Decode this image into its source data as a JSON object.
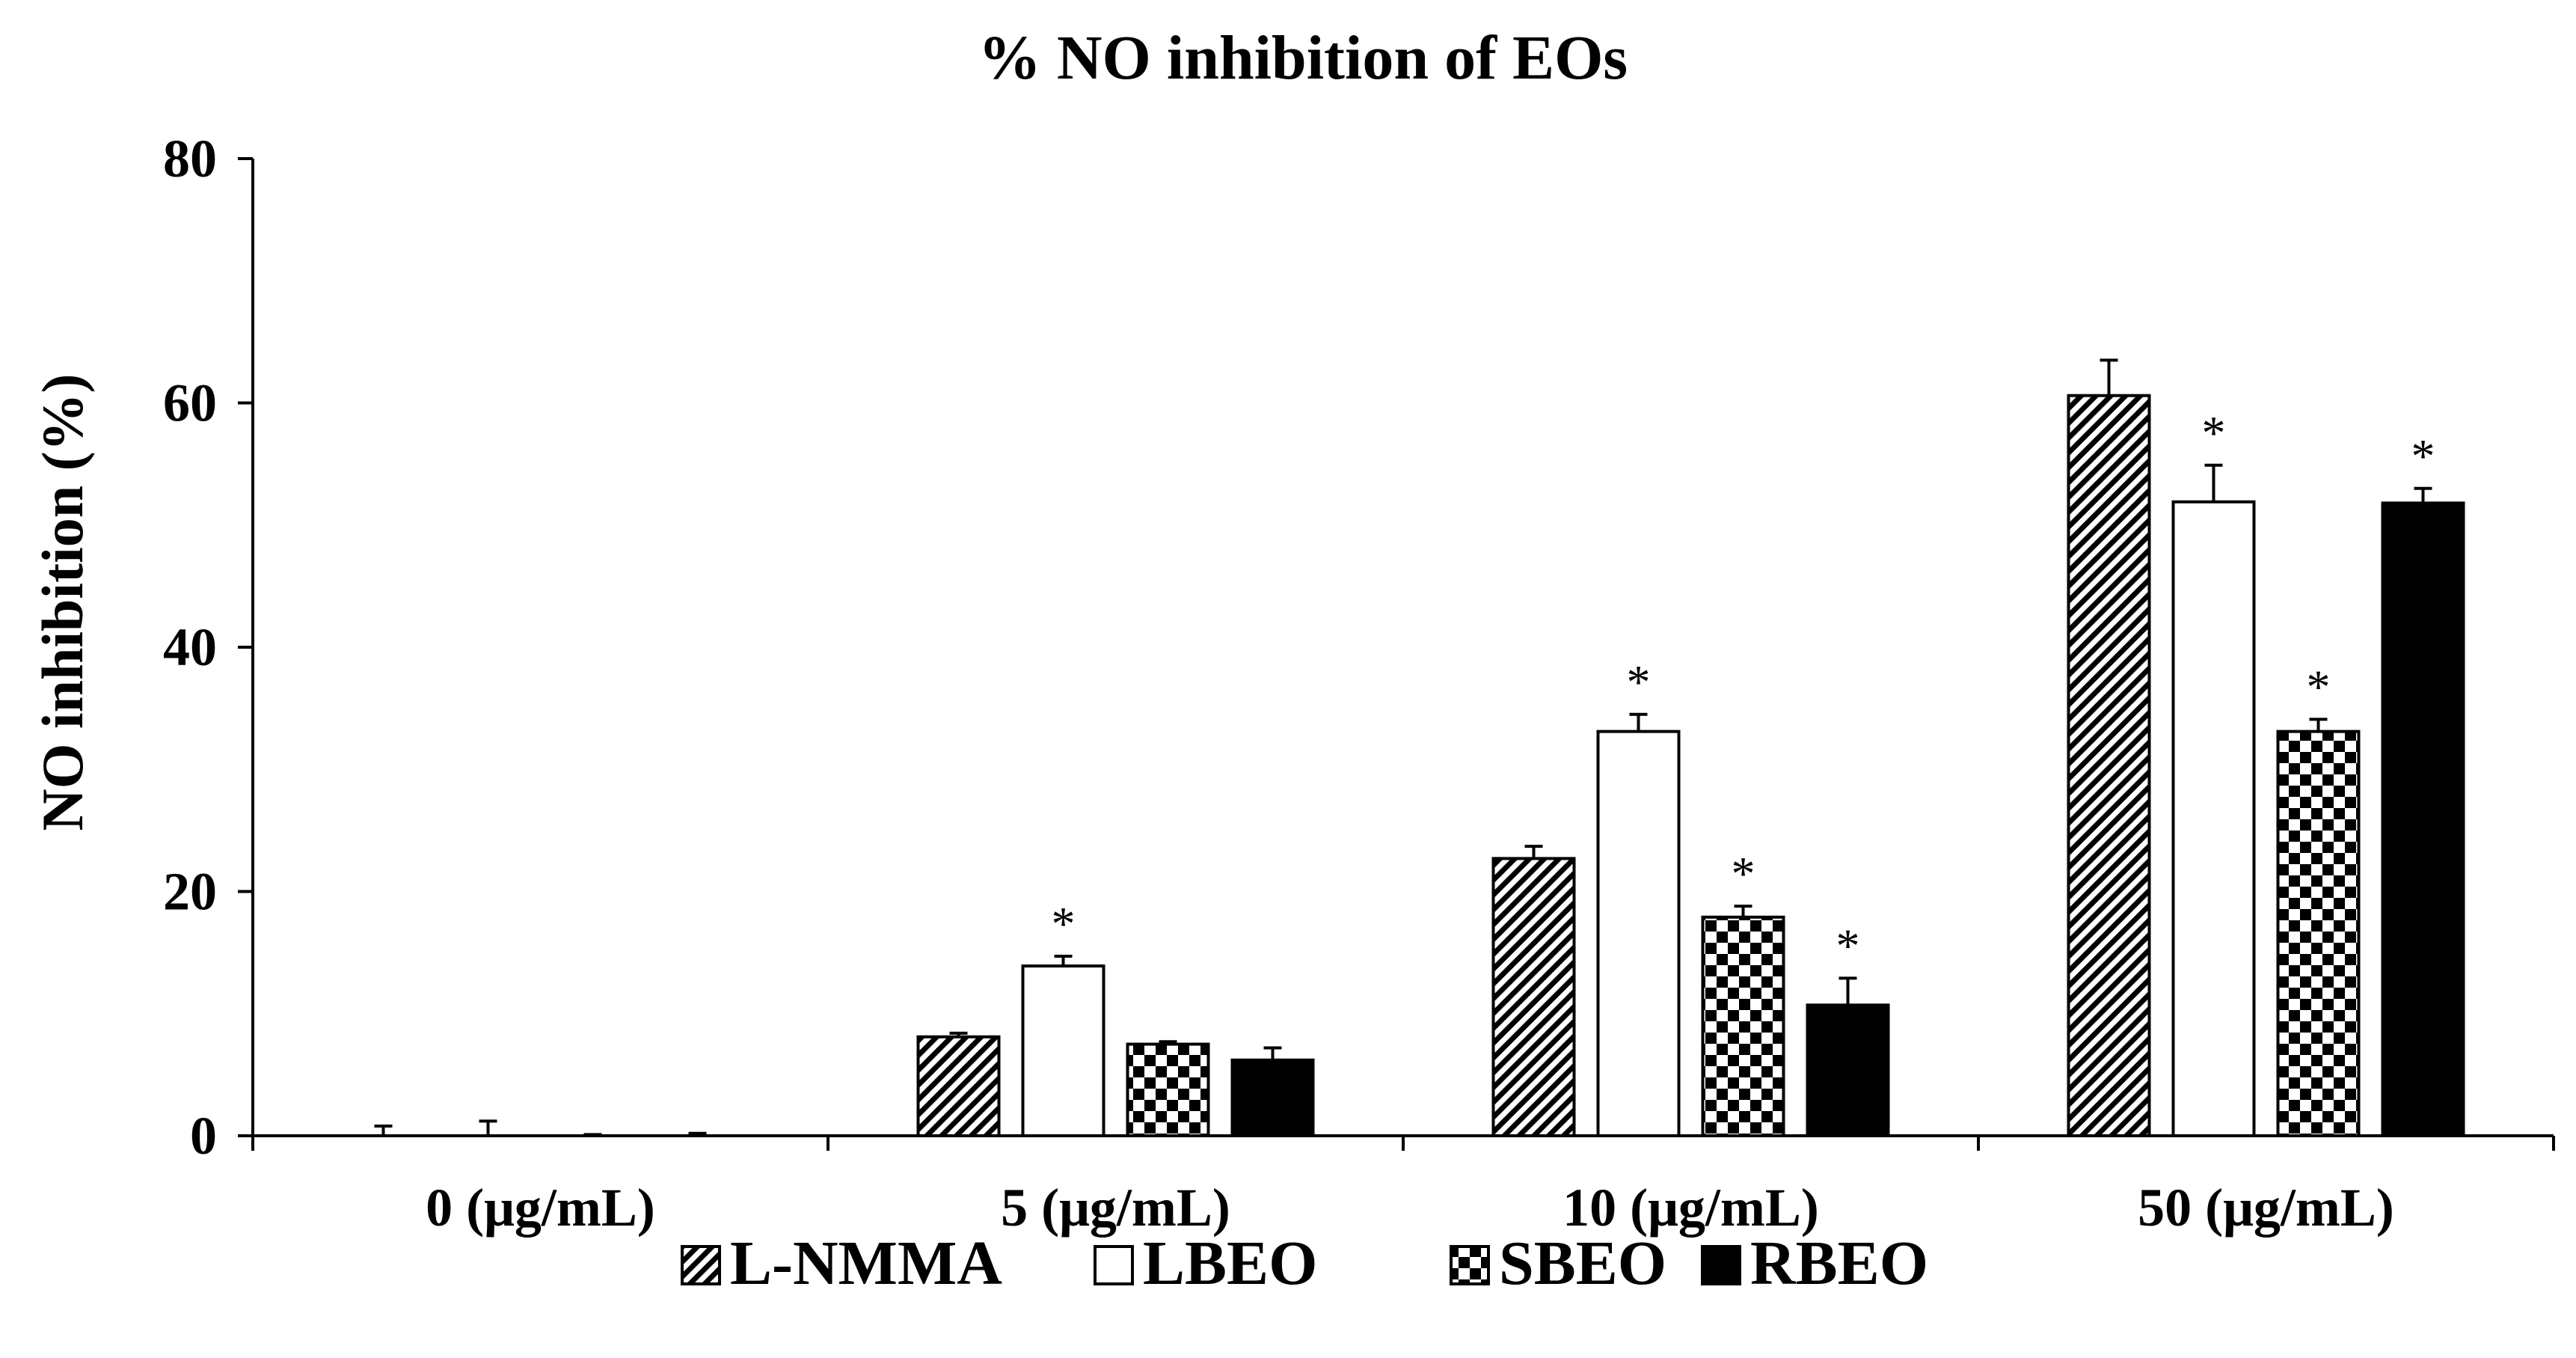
{
  "chart_data": {
    "type": "bar",
    "title": "% NO inhibition of EOs",
    "xlabel": "",
    "ylabel": "NO inhibition (%)",
    "ylim": [
      0,
      80
    ],
    "yticks": [
      0,
      20,
      40,
      60,
      80
    ],
    "grid": false,
    "legend_position": "bottom",
    "categories": [
      "0 (μg/mL)",
      "5 (μg/mL)",
      "10 (μg/mL)",
      "50 (μg/mL)"
    ],
    "series": [
      {
        "name": "L-NMMA",
        "pattern": "diagonal-hatch",
        "values": [
          0,
          8.1,
          22.7,
          60.6
        ],
        "errors": [
          0.8,
          0.3,
          1.0,
          2.9
        ],
        "significant": [
          false,
          false,
          false,
          false
        ]
      },
      {
        "name": "LBEO",
        "pattern": "white",
        "values": [
          0,
          13.9,
          33.1,
          51.9
        ],
        "errors": [
          1.2,
          0.8,
          1.4,
          3.0
        ],
        "significant": [
          false,
          true,
          true,
          true
        ]
      },
      {
        "name": "SBEO",
        "pattern": "checker",
        "values": [
          0,
          7.5,
          17.9,
          33.1
        ],
        "errors": [
          0.1,
          0.2,
          0.9,
          1.0
        ],
        "significant": [
          false,
          false,
          true,
          true
        ]
      },
      {
        "name": "RBEO",
        "pattern": "solid-black",
        "values": [
          0,
          6.2,
          10.7,
          51.8
        ],
        "errors": [
          0.2,
          1.0,
          2.2,
          1.2
        ],
        "significant": [
          false,
          false,
          true,
          true
        ]
      }
    ],
    "significance_marker": "*"
  }
}
